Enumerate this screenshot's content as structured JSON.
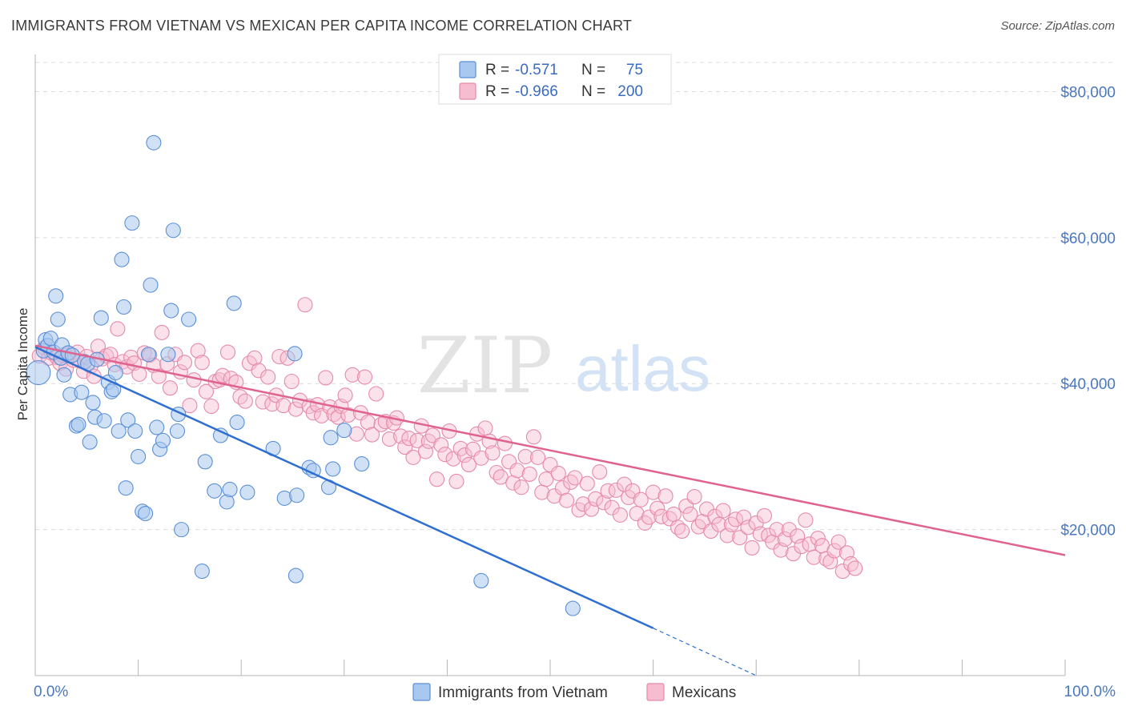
{
  "header": {
    "title": "IMMIGRANTS FROM VIETNAM VS MEXICAN PER CAPITA INCOME CORRELATION CHART",
    "source": "Source: ZipAtlas.com"
  },
  "watermark": {
    "zip": "ZIP",
    "atlas": "atlas"
  },
  "colors": {
    "vietnam_fill": "#a9c8ef",
    "vietnam_stroke": "#5b8fd6",
    "vietnam_line": "#2f6fd1",
    "mexican_fill": "#f6bcd0",
    "mexican_stroke": "#e58aab",
    "mexican_line": "#e0638f",
    "grid": "#dcdcdc",
    "tick_text": "#4a78c0"
  },
  "stats_legend": {
    "rows": [
      {
        "r_label": "R =",
        "r_value": "-0.571",
        "n_label": "N =",
        "n_value": "75"
      },
      {
        "r_label": "R =",
        "r_value": "-0.966",
        "n_label": "N =",
        "n_value": "200"
      }
    ]
  },
  "bottom_legend": {
    "items": [
      "Immigrants from Vietnam",
      "Mexicans"
    ]
  },
  "chart_data": {
    "type": "scatter",
    "title": "IMMIGRANTS FROM VIETNAM VS MEXICAN PER CAPITA INCOME CORRELATION CHART",
    "xlabel": "",
    "ylabel": "Per Capita Income",
    "xlim": [
      0,
      100
    ],
    "ylim": [
      0,
      84000
    ],
    "x_tick_labels": [
      "0.0%",
      "100.0%"
    ],
    "y_ticks": [
      20000,
      40000,
      60000,
      80000
    ],
    "y_tick_labels": [
      "$20,000",
      "$40,000",
      "$60,000",
      "$80,000"
    ],
    "grid": "horizontal dashed",
    "legend_position": "top-center",
    "series": [
      {
        "name": "Immigrants from Vietnam",
        "r": -0.571,
        "n": 75,
        "trend": {
          "x0": 0,
          "y0": 45000,
          "x1": 60,
          "y1": 6500,
          "dashed_to_x": 70,
          "dashed_to_y": 0
        },
        "points": [
          [
            0.3,
            41500
          ],
          [
            0.8,
            44500
          ],
          [
            1.0,
            46000
          ],
          [
            1.2,
            45200
          ],
          [
            1.5,
            46200
          ],
          [
            1.8,
            44300
          ],
          [
            2.0,
            52000
          ],
          [
            2.2,
            48800
          ],
          [
            2.5,
            43500
          ],
          [
            2.6,
            45300
          ],
          [
            2.8,
            41200
          ],
          [
            3.2,
            44200
          ],
          [
            3.4,
            38500
          ],
          [
            3.6,
            43900
          ],
          [
            4.0,
            34200
          ],
          [
            4.2,
            34400
          ],
          [
            4.5,
            38800
          ],
          [
            4.8,
            43000
          ],
          [
            5.1,
            42700
          ],
          [
            5.3,
            32000
          ],
          [
            5.6,
            37400
          ],
          [
            5.8,
            35400
          ],
          [
            6.0,
            43300
          ],
          [
            6.4,
            49000
          ],
          [
            6.7,
            34900
          ],
          [
            7.1,
            40200
          ],
          [
            7.4,
            38900
          ],
          [
            7.6,
            39200
          ],
          [
            7.8,
            41500
          ],
          [
            8.1,
            33500
          ],
          [
            8.4,
            57000
          ],
          [
            8.6,
            50500
          ],
          [
            8.8,
            25700
          ],
          [
            9.0,
            35000
          ],
          [
            9.4,
            62000
          ],
          [
            9.7,
            33500
          ],
          [
            10.0,
            30000
          ],
          [
            10.4,
            22500
          ],
          [
            10.7,
            22200
          ],
          [
            11.0,
            44000
          ],
          [
            11.2,
            53500
          ],
          [
            11.5,
            73000
          ],
          [
            11.8,
            34000
          ],
          [
            12.1,
            31000
          ],
          [
            12.4,
            32200
          ],
          [
            12.9,
            44000
          ],
          [
            13.2,
            50000
          ],
          [
            13.4,
            61000
          ],
          [
            13.8,
            33500
          ],
          [
            13.9,
            35800
          ],
          [
            14.2,
            20000
          ],
          [
            14.9,
            48800
          ],
          [
            16.2,
            14300
          ],
          [
            16.5,
            29300
          ],
          [
            17.4,
            25300
          ],
          [
            18.0,
            32900
          ],
          [
            18.6,
            23800
          ],
          [
            18.9,
            25500
          ],
          [
            19.3,
            51000
          ],
          [
            19.6,
            34700
          ],
          [
            20.6,
            25100
          ],
          [
            23.1,
            31100
          ],
          [
            24.2,
            24300
          ],
          [
            25.2,
            44100
          ],
          [
            25.3,
            13700
          ],
          [
            25.4,
            24700
          ],
          [
            26.6,
            28500
          ],
          [
            27.0,
            28100
          ],
          [
            28.5,
            25800
          ],
          [
            28.7,
            32600
          ],
          [
            28.9,
            28300
          ],
          [
            30.0,
            33600
          ],
          [
            31.7,
            29000
          ],
          [
            43.3,
            13000
          ],
          [
            52.2,
            9200
          ]
        ]
      },
      {
        "name": "Mexicans",
        "r": -0.966,
        "n": 200,
        "trend": {
          "x0": 0,
          "y0": 45200,
          "x1": 100,
          "y1": 16500
        },
        "points": [
          [
            0.4,
            43800
          ],
          [
            0.9,
            44900
          ],
          [
            1.3,
            43500
          ],
          [
            1.6,
            44200
          ],
          [
            2.1,
            43600
          ],
          [
            2.4,
            42800
          ],
          [
            2.7,
            43900
          ],
          [
            3.0,
            42000
          ],
          [
            3.3,
            44100
          ],
          [
            3.7,
            43200
          ],
          [
            4.1,
            44300
          ],
          [
            4.4,
            43100
          ],
          [
            4.7,
            41700
          ],
          [
            5.0,
            43700
          ],
          [
            5.4,
            42400
          ],
          [
            5.7,
            41000
          ],
          [
            6.1,
            45100
          ],
          [
            6.5,
            43400
          ],
          [
            6.9,
            43800
          ],
          [
            7.3,
            44000
          ],
          [
            7.7,
            42600
          ],
          [
            8.0,
            47500
          ],
          [
            8.5,
            43000
          ],
          [
            8.9,
            42300
          ],
          [
            9.3,
            43600
          ],
          [
            9.6,
            42800
          ],
          [
            10.1,
            41300
          ],
          [
            10.6,
            44200
          ],
          [
            11.1,
            43900
          ],
          [
            11.5,
            42500
          ],
          [
            12.0,
            41000
          ],
          [
            12.3,
            47000
          ],
          [
            12.8,
            42700
          ],
          [
            13.1,
            39400
          ],
          [
            13.6,
            44000
          ],
          [
            14.1,
            41600
          ],
          [
            14.5,
            42900
          ],
          [
            15.0,
            37000
          ],
          [
            15.4,
            40500
          ],
          [
            15.8,
            44500
          ],
          [
            16.2,
            42900
          ],
          [
            16.6,
            38900
          ],
          [
            17.1,
            36900
          ],
          [
            17.5,
            40300
          ],
          [
            17.9,
            40500
          ],
          [
            18.2,
            41100
          ],
          [
            18.7,
            44300
          ],
          [
            19.0,
            40700
          ],
          [
            19.5,
            40200
          ],
          [
            19.9,
            38200
          ],
          [
            20.4,
            37600
          ],
          [
            20.8,
            42800
          ],
          [
            21.3,
            43500
          ],
          [
            21.7,
            41800
          ],
          [
            22.1,
            37500
          ],
          [
            22.6,
            40900
          ],
          [
            23.0,
            37200
          ],
          [
            23.4,
            38400
          ],
          [
            23.7,
            43700
          ],
          [
            24.1,
            37000
          ],
          [
            24.5,
            43500
          ],
          [
            24.9,
            40300
          ],
          [
            25.3,
            36500
          ],
          [
            25.7,
            37700
          ],
          [
            26.2,
            50800
          ],
          [
            26.6,
            36900
          ],
          [
            27.0,
            36000
          ],
          [
            27.4,
            37100
          ],
          [
            27.8,
            35600
          ],
          [
            28.2,
            40800
          ],
          [
            28.6,
            36800
          ],
          [
            29.0,
            35800
          ],
          [
            29.4,
            35400
          ],
          [
            29.7,
            36900
          ],
          [
            30.1,
            38400
          ],
          [
            30.4,
            35700
          ],
          [
            30.8,
            41200
          ],
          [
            31.2,
            33100
          ],
          [
            31.6,
            36000
          ],
          [
            32.0,
            40900
          ],
          [
            32.3,
            34700
          ],
          [
            32.7,
            33000
          ],
          [
            33.1,
            38600
          ],
          [
            33.6,
            34400
          ],
          [
            34.0,
            34800
          ],
          [
            34.4,
            32400
          ],
          [
            34.8,
            34600
          ],
          [
            35.1,
            35300
          ],
          [
            35.5,
            32800
          ],
          [
            35.9,
            31300
          ],
          [
            36.3,
            32500
          ],
          [
            36.7,
            29900
          ],
          [
            37.1,
            32200
          ],
          [
            37.5,
            34200
          ],
          [
            37.9,
            30700
          ],
          [
            38.2,
            32100
          ],
          [
            38.6,
            32900
          ],
          [
            39.0,
            26900
          ],
          [
            39.4,
            31600
          ],
          [
            39.8,
            30300
          ],
          [
            40.2,
            33500
          ],
          [
            40.6,
            29700
          ],
          [
            40.9,
            26600
          ],
          [
            41.3,
            31100
          ],
          [
            41.7,
            30200
          ],
          [
            42.1,
            28900
          ],
          [
            42.5,
            31000
          ],
          [
            42.9,
            33100
          ],
          [
            43.3,
            29800
          ],
          [
            43.7,
            33900
          ],
          [
            44.1,
            32100
          ],
          [
            44.4,
            30500
          ],
          [
            44.8,
            27800
          ],
          [
            45.2,
            27200
          ],
          [
            45.6,
            31800
          ],
          [
            46.0,
            29300
          ],
          [
            46.4,
            26400
          ],
          [
            46.8,
            28100
          ],
          [
            47.2,
            25800
          ],
          [
            47.6,
            30000
          ],
          [
            48.0,
            27600
          ],
          [
            48.4,
            32700
          ],
          [
            48.8,
            29900
          ],
          [
            49.2,
            25100
          ],
          [
            49.6,
            26900
          ],
          [
            50.0,
            28900
          ],
          [
            50.4,
            24600
          ],
          [
            50.8,
            27700
          ],
          [
            51.2,
            25700
          ],
          [
            51.6,
            24000
          ],
          [
            52.0,
            26500
          ],
          [
            52.4,
            27100
          ],
          [
            52.8,
            22700
          ],
          [
            53.2,
            23500
          ],
          [
            53.6,
            26300
          ],
          [
            54.0,
            22800
          ],
          [
            54.4,
            24200
          ],
          [
            54.8,
            27900
          ],
          [
            55.2,
            23700
          ],
          [
            55.6,
            25300
          ],
          [
            56.0,
            23000
          ],
          [
            56.4,
            25400
          ],
          [
            56.8,
            22000
          ],
          [
            57.2,
            26200
          ],
          [
            57.6,
            24400
          ],
          [
            58.0,
            25300
          ],
          [
            58.4,
            22200
          ],
          [
            58.8,
            24100
          ],
          [
            59.2,
            20900
          ],
          [
            59.6,
            21700
          ],
          [
            60.0,
            25100
          ],
          [
            60.4,
            22900
          ],
          [
            60.8,
            21800
          ],
          [
            61.2,
            24600
          ],
          [
            61.6,
            21500
          ],
          [
            62.0,
            22100
          ],
          [
            62.4,
            20300
          ],
          [
            62.8,
            19800
          ],
          [
            63.2,
            23200
          ],
          [
            63.6,
            22100
          ],
          [
            64.0,
            24500
          ],
          [
            64.4,
            20400
          ],
          [
            64.8,
            21100
          ],
          [
            65.2,
            22800
          ],
          [
            65.6,
            19800
          ],
          [
            66.0,
            21800
          ],
          [
            66.4,
            20700
          ],
          [
            66.8,
            22600
          ],
          [
            67.2,
            19200
          ],
          [
            67.6,
            20700
          ],
          [
            68.0,
            21400
          ],
          [
            68.4,
            18900
          ],
          [
            68.8,
            21700
          ],
          [
            69.2,
            20300
          ],
          [
            69.6,
            17500
          ],
          [
            70.0,
            20900
          ],
          [
            70.4,
            19400
          ],
          [
            70.8,
            21900
          ],
          [
            71.2,
            19200
          ],
          [
            71.6,
            18300
          ],
          [
            72.0,
            20000
          ],
          [
            72.4,
            17200
          ],
          [
            72.8,
            18700
          ],
          [
            73.2,
            20000
          ],
          [
            73.6,
            16700
          ],
          [
            74.0,
            19100
          ],
          [
            74.4,
            17700
          ],
          [
            74.8,
            21300
          ],
          [
            75.2,
            18000
          ],
          [
            75.6,
            16200
          ],
          [
            76.0,
            18800
          ],
          [
            76.4,
            17800
          ],
          [
            76.8,
            16000
          ],
          [
            77.2,
            15600
          ],
          [
            77.6,
            17100
          ],
          [
            78.0,
            18300
          ],
          [
            78.4,
            14300
          ],
          [
            78.8,
            16800
          ],
          [
            79.2,
            15300
          ],
          [
            79.6,
            14700
          ]
        ]
      }
    ]
  }
}
